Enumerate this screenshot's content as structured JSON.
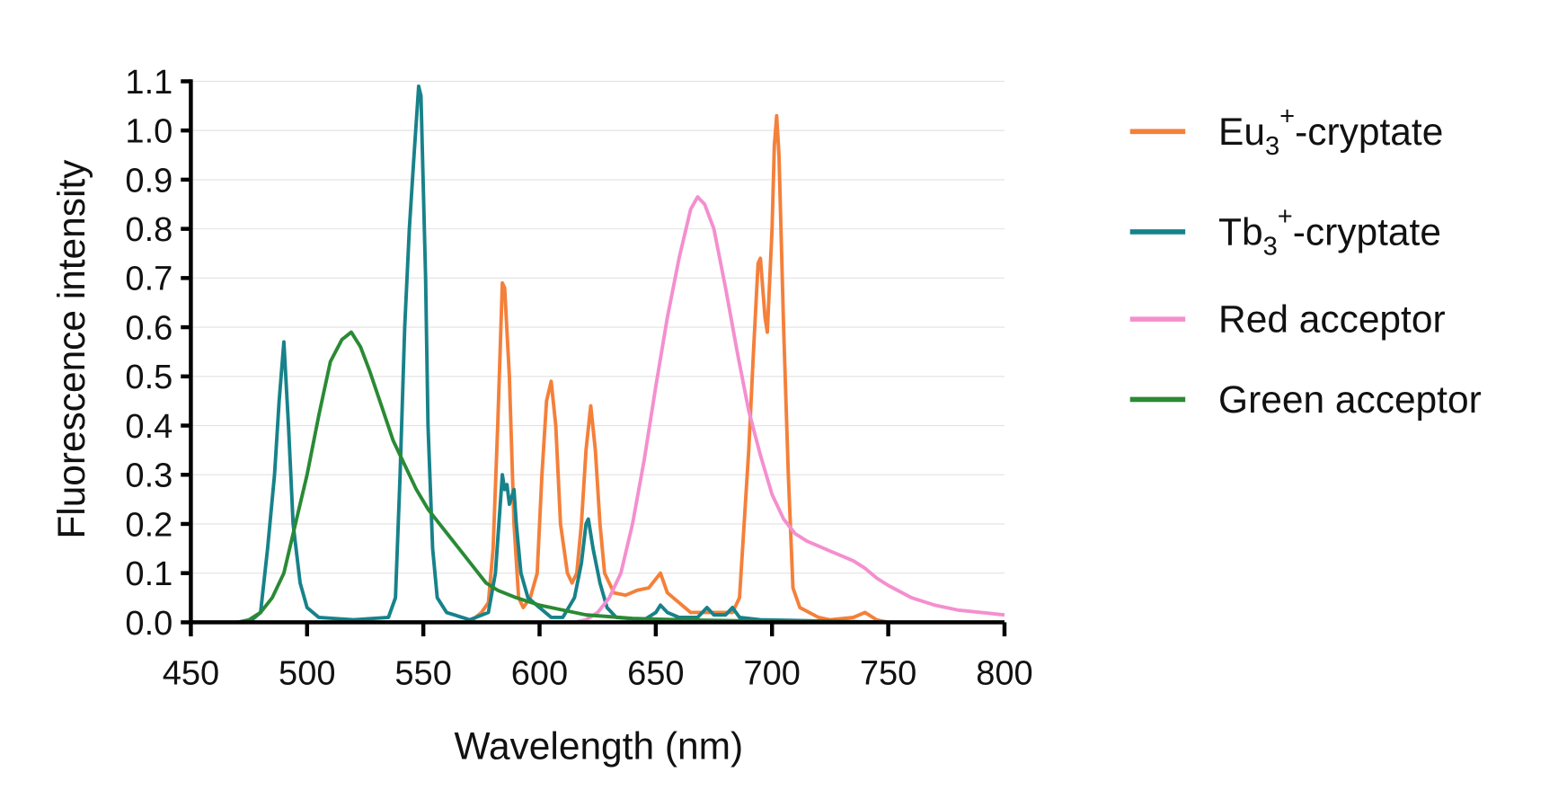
{
  "chart_data": {
    "type": "line",
    "title": "",
    "xlabel": "Wavelength (nm)",
    "ylabel": "Fluorescence intensity",
    "xlim": [
      450,
      800
    ],
    "ylim": [
      0,
      1.1
    ],
    "xticks": [
      450,
      500,
      550,
      600,
      650,
      700,
      750,
      800
    ],
    "yticks": [
      "0.0",
      "0.1",
      "0.2",
      "0.3",
      "0.4",
      "0.5",
      "0.6",
      "0.7",
      "0.8",
      "0.9",
      "1.0",
      "1.1"
    ],
    "grid": "horizontal",
    "legend_position": "right",
    "series": [
      {
        "name": "Eu3+-cryptate",
        "label_parts": {
          "base": "Eu",
          "sub": "3",
          "sup": "+",
          "rest": "-cryptate"
        },
        "color": "#f4803a",
        "x": [
          450,
          570,
          575,
          578,
          580,
          582,
          584,
          585,
          587,
          589,
          591,
          593,
          596,
          599,
          601,
          603,
          605,
          607,
          609,
          612,
          614,
          616,
          618,
          620,
          622,
          624,
          626,
          628,
          632,
          637,
          642,
          647,
          652,
          655,
          660,
          665,
          675,
          683,
          686,
          688,
          690,
          692,
          694,
          695,
          697,
          698,
          700,
          701,
          702,
          703,
          705,
          707,
          709,
          712,
          720,
          725,
          735,
          740,
          745,
          750
        ],
        "y": [
          0,
          0,
          0.02,
          0.04,
          0.15,
          0.4,
          0.69,
          0.68,
          0.5,
          0.2,
          0.05,
          0.03,
          0.05,
          0.1,
          0.3,
          0.45,
          0.49,
          0.4,
          0.2,
          0.1,
          0.08,
          0.1,
          0.2,
          0.35,
          0.44,
          0.35,
          0.2,
          0.1,
          0.06,
          0.055,
          0.065,
          0.07,
          0.1,
          0.06,
          0.04,
          0.02,
          0.02,
          0.02,
          0.05,
          0.2,
          0.35,
          0.55,
          0.73,
          0.74,
          0.62,
          0.59,
          0.8,
          0.97,
          1.03,
          0.95,
          0.6,
          0.3,
          0.07,
          0.03,
          0.01,
          0.005,
          0.01,
          0.02,
          0.005,
          0
        ]
      },
      {
        "name": "Tb3+-cryptate",
        "label_parts": {
          "base": "Tb",
          "sub": "3",
          "sup": "+",
          "rest": "-cryptate"
        },
        "color": "#17828a",
        "x": [
          450,
          475,
          480,
          483,
          486,
          488,
          490,
          492,
          494,
          497,
          500,
          505,
          520,
          535,
          538,
          540,
          542,
          544,
          546,
          548,
          549,
          551,
          552,
          554,
          556,
          560,
          570,
          578,
          581,
          584,
          585,
          586,
          587,
          589,
          590,
          592,
          595,
          600,
          605,
          610,
          615,
          618,
          620,
          621,
          623,
          626,
          629,
          633,
          645,
          650,
          652,
          655,
          660,
          668,
          672,
          675,
          680,
          683,
          686,
          695,
          750
        ],
        "y": [
          0,
          0,
          0.02,
          0.15,
          0.3,
          0.45,
          0.57,
          0.4,
          0.2,
          0.08,
          0.03,
          0.01,
          0.005,
          0.01,
          0.05,
          0.3,
          0.6,
          0.8,
          0.95,
          1.09,
          1.07,
          0.7,
          0.4,
          0.15,
          0.05,
          0.02,
          0.005,
          0.02,
          0.1,
          0.3,
          0.27,
          0.28,
          0.24,
          0.27,
          0.2,
          0.1,
          0.05,
          0.03,
          0.01,
          0.01,
          0.05,
          0.12,
          0.2,
          0.21,
          0.15,
          0.08,
          0.03,
          0.01,
          0.005,
          0.02,
          0.035,
          0.02,
          0.01,
          0.01,
          0.03,
          0.015,
          0.015,
          0.03,
          0.01,
          0.005,
          0
        ]
      },
      {
        "name": "Red acceptor",
        "color": "#f48fcf",
        "x": [
          450,
          615,
          620,
          625,
          630,
          635,
          640,
          645,
          650,
          655,
          660,
          665,
          668,
          671,
          675,
          680,
          685,
          690,
          695,
          700,
          705,
          710,
          715,
          720,
          725,
          730,
          735,
          740,
          745,
          750,
          760,
          770,
          780,
          790,
          800
        ],
        "y": [
          0,
          0,
          0.005,
          0.02,
          0.05,
          0.1,
          0.2,
          0.33,
          0.48,
          0.62,
          0.74,
          0.84,
          0.865,
          0.85,
          0.8,
          0.68,
          0.55,
          0.43,
          0.34,
          0.26,
          0.21,
          0.18,
          0.165,
          0.155,
          0.145,
          0.135,
          0.125,
          0.11,
          0.09,
          0.075,
          0.05,
          0.035,
          0.025,
          0.02,
          0.015
        ]
      },
      {
        "name": "Green acceptor",
        "color": "#2a8a34",
        "x": [
          450,
          470,
          475,
          480,
          485,
          490,
          495,
          500,
          505,
          510,
          515,
          519,
          523,
          527,
          532,
          537,
          542,
          547,
          552,
          557,
          562,
          567,
          572,
          577,
          582,
          590,
          600,
          610,
          620,
          640,
          660,
          700,
          750
        ],
        "y": [
          0,
          0,
          0.005,
          0.02,
          0.05,
          0.1,
          0.2,
          0.3,
          0.42,
          0.53,
          0.575,
          0.59,
          0.56,
          0.51,
          0.44,
          0.37,
          0.32,
          0.27,
          0.23,
          0.2,
          0.17,
          0.14,
          0.11,
          0.08,
          0.065,
          0.05,
          0.035,
          0.025,
          0.015,
          0.008,
          0.005,
          0.002,
          0
        ]
      }
    ]
  }
}
